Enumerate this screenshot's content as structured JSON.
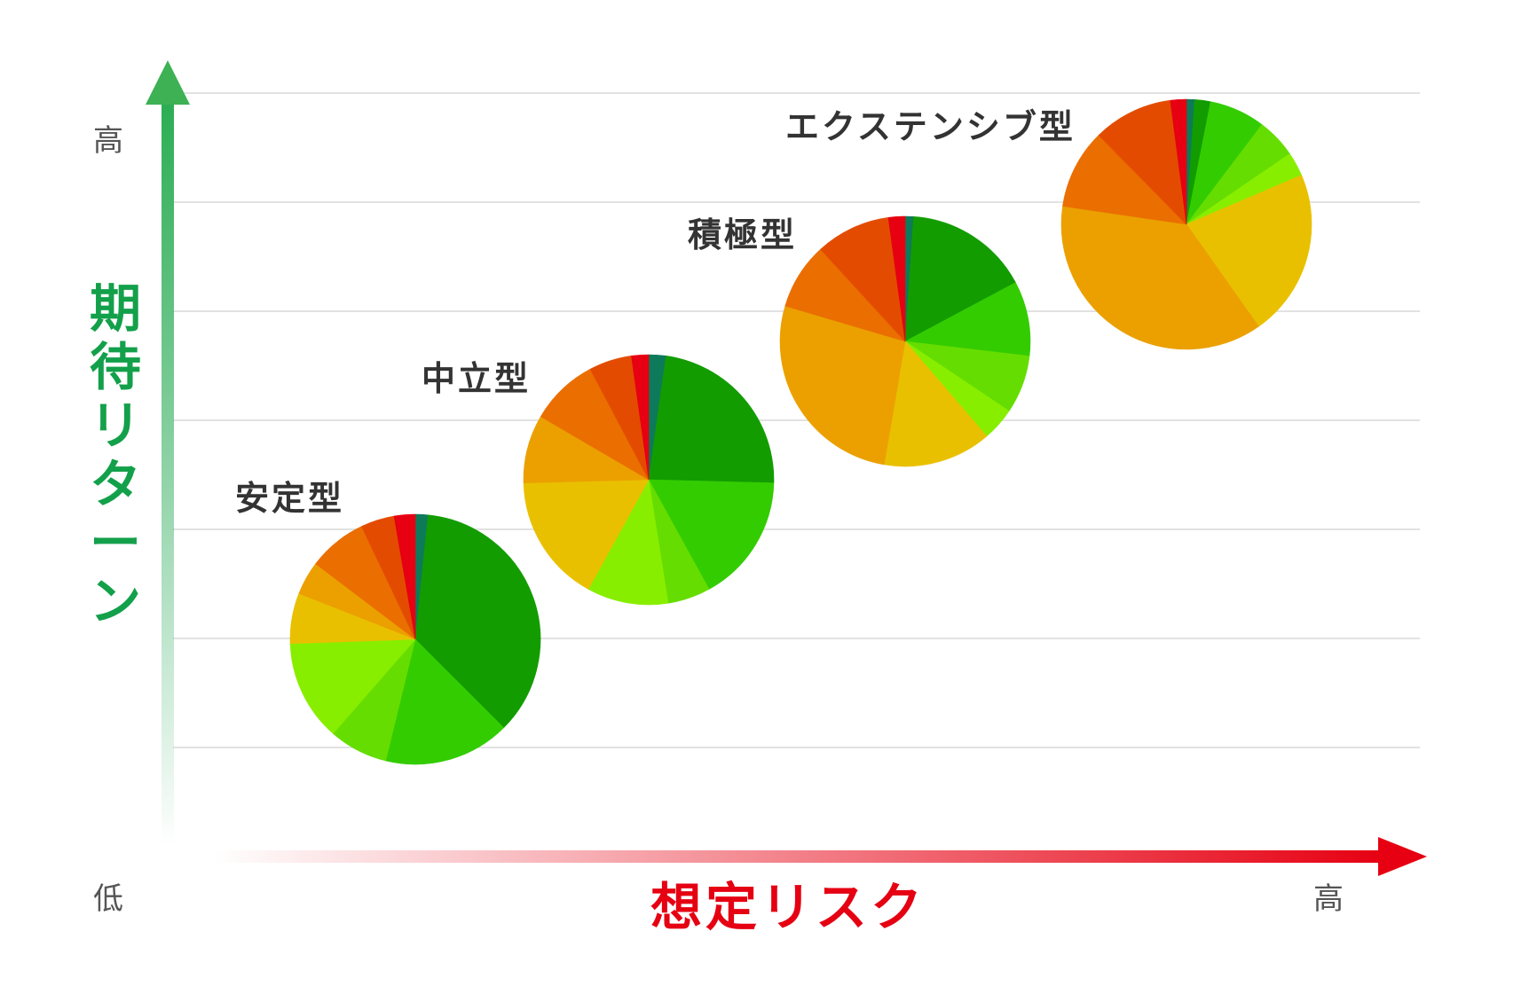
{
  "chart_data": {
    "type": "pie",
    "xlabel": "想定リスク",
    "ylabel": "期待リターン",
    "y_ticks": {
      "high": "高",
      "low": "低"
    },
    "x_ticks": {
      "high": "高"
    },
    "grid": true,
    "slice_colors": [
      "#0d7a5a",
      "#129c00",
      "#33cc00",
      "#66dd00",
      "#88ee00",
      "#e9c000",
      "#eba000",
      "#eb6e00",
      "#e34c00",
      "#e60012"
    ],
    "series": [
      {
        "name": "安定型",
        "values": [
          1.5,
          33,
          15,
          7,
          12,
          6,
          4,
          7,
          4,
          2.5
        ]
      },
      {
        "name": "中立型",
        "values": [
          2,
          21,
          15,
          5,
          9.5,
          15,
          8,
          8,
          5,
          2
        ]
      },
      {
        "name": "積極型",
        "values": [
          1,
          15,
          9,
          7,
          4,
          13,
          25,
          8,
          9,
          2
        ]
      },
      {
        "name": "エクステンシブ型",
        "values": [
          1,
          2,
          7,
          5,
          3,
          21,
          36,
          10,
          10,
          2
        ]
      }
    ]
  }
}
